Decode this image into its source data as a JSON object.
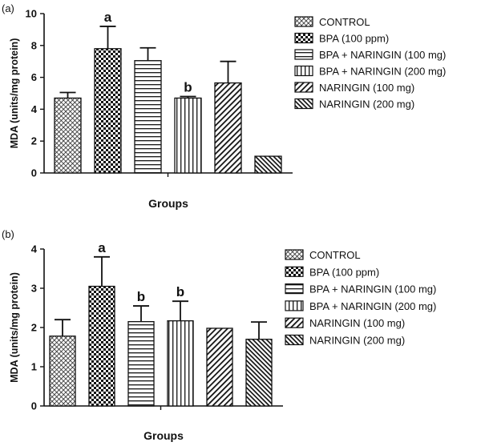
{
  "chart_data": [
    {
      "type": "bar",
      "panel_label": "(a)",
      "title": "",
      "xlabel": "Groups",
      "ylabel": "MDA (units/mg protein)",
      "ylim": [
        0,
        10
      ],
      "yticks": [
        0,
        2,
        4,
        6,
        8,
        10
      ],
      "grid": false,
      "legend_position": "right",
      "categories": [
        "CONTROL",
        "BPA (100 ppm)",
        "BPA + NARINGIN (100 mg)",
        "BPA + NARINGIN (200 mg)",
        "NARINGIN (100 mg)",
        "NARINGIN (200 mg)"
      ],
      "patterns": [
        "cross",
        "check",
        "hlines",
        "vlines",
        "diag",
        "diag-dense"
      ],
      "values": [
        4.7,
        7.8,
        7.05,
        4.7,
        5.65,
        1.05
      ],
      "errors": [
        0.35,
        1.4,
        0.8,
        0.1,
        1.35,
        0
      ],
      "annotations": [
        "",
        "a",
        "",
        "b",
        "",
        ""
      ]
    },
    {
      "type": "bar",
      "panel_label": "(b)",
      "title": "",
      "xlabel": "Groups",
      "ylabel": "MDA (units/mg protein)",
      "ylim": [
        0,
        4
      ],
      "yticks": [
        0,
        1,
        2,
        3,
        4
      ],
      "grid": false,
      "legend_position": "right",
      "categories": [
        "CONTROL",
        "BPA (100 ppm)",
        "BPA + NARINGIN (100 mg)",
        "BPA + NARINGIN (200 mg)",
        "NARINGIN (100 mg)",
        "NARINGIN (200 mg)"
      ],
      "patterns": [
        "cross",
        "check",
        "hlines",
        "vlines",
        "diag",
        "diag-dense"
      ],
      "values": [
        1.78,
        3.05,
        2.15,
        2.17,
        1.98,
        1.7
      ],
      "errors": [
        0.42,
        0.75,
        0.4,
        0.5,
        0,
        0.44
      ],
      "annotations": [
        "",
        "a",
        "b",
        "b",
        "",
        ""
      ]
    }
  ]
}
